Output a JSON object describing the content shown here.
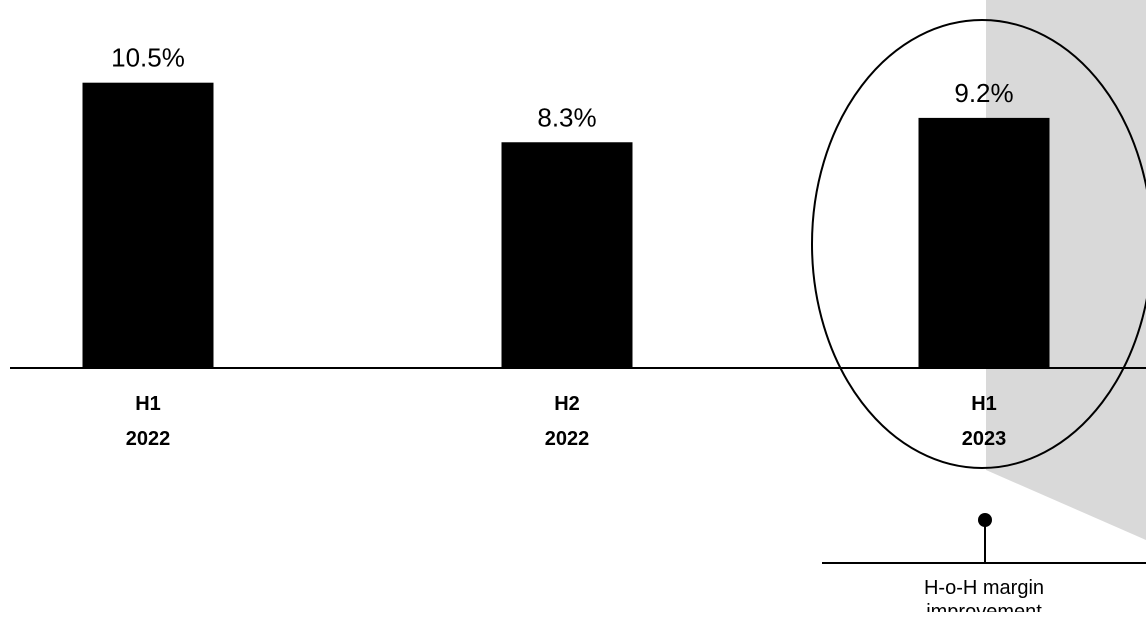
{
  "chart_data": {
    "type": "bar",
    "title": "",
    "xlabel": "",
    "ylabel": "",
    "categories": [
      {
        "line1": "H1",
        "line2": "2022"
      },
      {
        "line1": "H2",
        "line2": "2022"
      },
      {
        "line1": "H1",
        "line2": "2023"
      }
    ],
    "values": [
      10.5,
      8.3,
      9.2
    ],
    "value_labels": [
      "10.5%",
      "8.3%",
      "9.2%"
    ],
    "ylim": [
      0,
      13
    ],
    "grid": false,
    "legend": "none",
    "highlighted_category_index": 2
  },
  "callout": {
    "line1": "H-o-H margin",
    "line2": "improvement"
  },
  "colors": {
    "bar": "#000000",
    "axis": "#000000",
    "text": "#000000",
    "highlight_outline": "#000000",
    "callout_wedge": "#d9d9d9",
    "background": "#ffffff"
  }
}
